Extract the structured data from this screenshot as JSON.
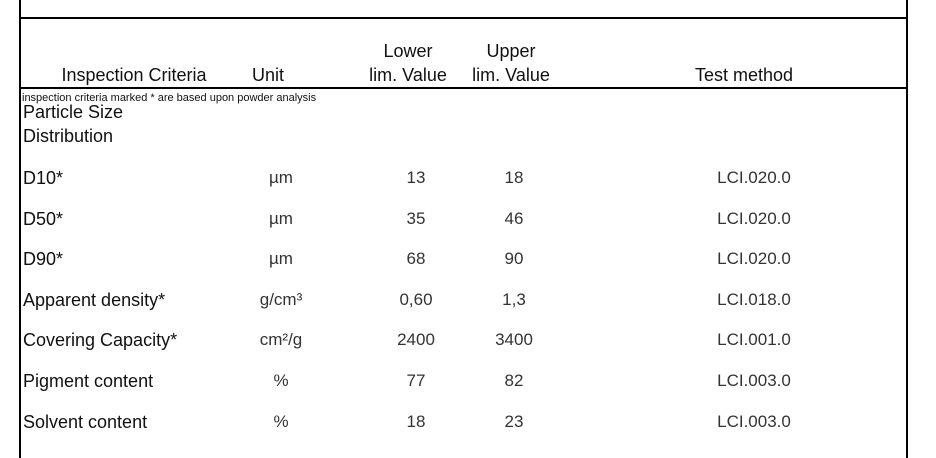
{
  "table": {
    "header": [
      [
        "Inspection Criteria"
      ],
      [
        "Unit"
      ],
      [
        "Lower",
        "lim. Value"
      ],
      [
        "Upper",
        "lim. Value"
      ],
      [
        "Test method"
      ]
    ],
    "note": "inspection criteria marked * are based upon powder analysis",
    "section": [
      "Particle Size",
      "Distribution"
    ],
    "rows": [
      [
        "D10*",
        "µm",
        "13",
        "18",
        "LCI.020.0"
      ],
      [
        "D50*",
        "µm",
        "35",
        "46",
        "LCI.020.0"
      ],
      [
        "D90*",
        "µm",
        "68",
        "90",
        "LCI.020.0"
      ],
      [
        "Apparent density*",
        "g/cm³",
        "0,60",
        "1,3",
        "LCI.018.0"
      ],
      [
        "Covering Capacity*",
        "cm²/g",
        "2400",
        "3400",
        "LCI.001.0"
      ],
      [
        "Pigment content",
        "%",
        "77",
        "82",
        "LCI.003.0"
      ],
      [
        "Solvent content",
        "%",
        "18",
        "23",
        "LCI.003.0"
      ]
    ]
  }
}
